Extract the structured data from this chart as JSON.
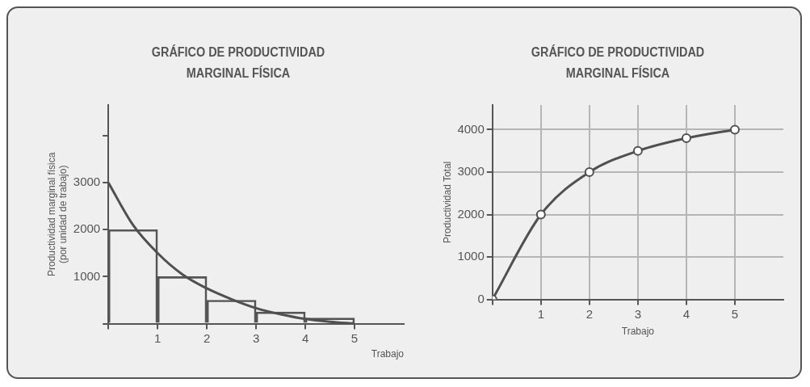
{
  "chart_data": [
    {
      "type": "bar",
      "title": "GRÁFICO DE PRODUCTIVIDAD\nMARGINAL FÍSICA",
      "xlabel": "Trabajo",
      "ylabel": "Productividad marginal física\n(por unidad de trabajo)",
      "series": [
        {
          "color": "#555555",
          "x": [
            0.5,
            1.5,
            2.5,
            3.5,
            4.5
          ],
          "values": [
            2000,
            1000,
            500,
            250,
            120
          ]
        },
        {
          "type": "line",
          "color": "#505050",
          "x": [
            0,
            0.5,
            1,
            1.5,
            2,
            2.5,
            3,
            3.5,
            4,
            4.5,
            5
          ],
          "values": [
            3000,
            2100,
            1500,
            1050,
            750,
            520,
            330,
            200,
            100,
            40,
            0
          ]
        }
      ],
      "xlim": [
        0,
        6
      ],
      "ylim": [
        0,
        4650
      ],
      "xticks": [
        {
          "value": 0,
          "label": null
        },
        1,
        2,
        3,
        4,
        5
      ],
      "yticks": [
        {
          "value": 0,
          "label": null
        },
        1000,
        2000,
        3000,
        {
          "value": 4000,
          "label": null
        }
      ],
      "grid": false,
      "marker": "none",
      "line_style": "solid"
    },
    {
      "type": "line",
      "title": "GRÁFICO DE PRODUCTIVIDAD\nMARGINAL FÍSICA",
      "xlabel": "Trabajo",
      "ylabel": "Productividad Total",
      "series": [
        {
          "color": "#505050",
          "x": [
            0,
            1,
            2,
            3,
            4,
            5
          ],
          "values": [
            0,
            2000,
            3000,
            3500,
            3800,
            4000
          ]
        }
      ],
      "xlim": [
        0,
        6
      ],
      "ylim": [
        0,
        4580
      ],
      "xticks": [
        {
          "value": 0,
          "label": null
        },
        1,
        2,
        3,
        4,
        5
      ],
      "yticks": [
        0,
        1000,
        2000,
        3000,
        4000
      ],
      "grid": true,
      "marker": "circle",
      "line_style": "solid"
    }
  ]
}
